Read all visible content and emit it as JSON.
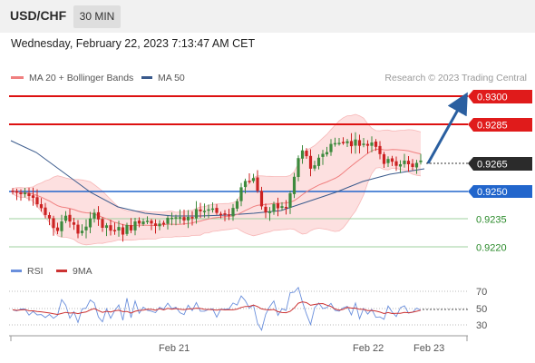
{
  "header": {
    "symbol": "USD/CHF",
    "timeframe": "30 MIN",
    "datetime": "Wednesday, February 22, 2023 7:13:47 AM CET"
  },
  "legend": {
    "ma20": "MA 20 + Bollinger Bands",
    "ma50": "MA 50",
    "copyright": "Research © 2023 Trading Central"
  },
  "rsi_legend": {
    "rsi": "RSI",
    "ma9": "9MA"
  },
  "colors": {
    "resistance": "#dd1111",
    "support": "#2a8a2a",
    "pivot": "#2266cc",
    "candle_up": "#3d8a3d",
    "candle_down": "#cc2222",
    "ma20": "#f08080",
    "ma50": "#3a5a8c",
    "bands_fill": "#fde0e0",
    "arrow": "#2a5fa0",
    "rsi": "#6a8fdc",
    "ma9": "#cc3333"
  },
  "price_levels": [
    {
      "label": "0.9300",
      "type": "resistance"
    },
    {
      "label": "0.9285",
      "type": "resistance"
    },
    {
      "label": "0.9265",
      "type": "last"
    },
    {
      "label": "0.9250",
      "type": "pivot"
    },
    {
      "label": "0.9235",
      "type": "support"
    },
    {
      "label": "0.9220",
      "type": "support"
    }
  ],
  "rsi_axis": [
    "70",
    "50",
    "30"
  ],
  "x_axis_labels": [
    "Feb 21",
    "Feb 22",
    "Feb 23"
  ],
  "chart_data": {
    "type": "candlestick",
    "y_price_levels": [
      0.93,
      0.9285,
      0.9265,
      0.925,
      0.9235,
      0.922
    ],
    "last_price": 0.9265,
    "rsi_levels": [
      70,
      50,
      30
    ],
    "x_labels": [
      "Feb 21",
      "Feb 22",
      "Feb 23"
    ],
    "series": [
      {
        "name": "MA 20 + Bollinger Bands"
      },
      {
        "name": "MA 50"
      },
      {
        "name": "RSI"
      },
      {
        "name": "9MA"
      }
    ]
  }
}
